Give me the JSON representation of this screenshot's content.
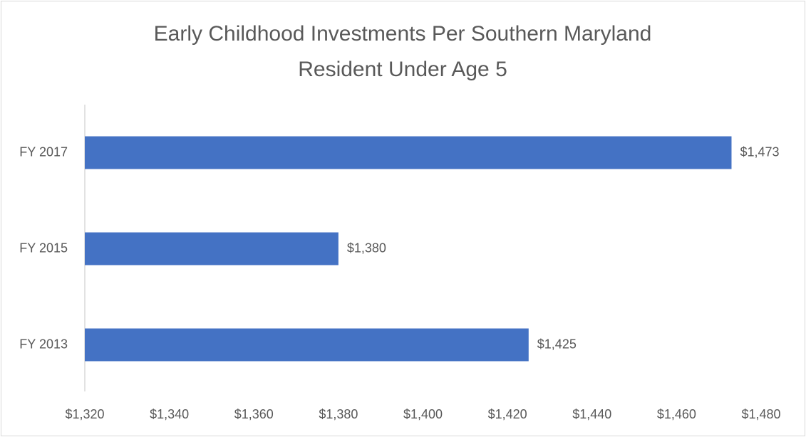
{
  "chart_data": {
    "type": "hbar",
    "title": [
      "Early Childhood Investments Per Southern Maryland",
      "Resident Under Age 5"
    ],
    "categories": [
      "FY 2017",
      "FY 2015",
      "FY 2013"
    ],
    "values": [
      1473,
      1380,
      1425
    ],
    "value_labels": [
      "$1,473",
      "$1,380",
      "$1,425"
    ],
    "color": "#4472c4",
    "xlim": [
      1320,
      1480
    ],
    "xticks": [
      {
        "value": 1320,
        "label": "$1,320"
      },
      {
        "value": 1340,
        "label": "$1,340"
      },
      {
        "value": 1360,
        "label": "$1,360"
      },
      {
        "value": 1380,
        "label": "$1,380"
      },
      {
        "value": 1400,
        "label": "$1,400"
      },
      {
        "value": 1420,
        "label": "$1,420"
      },
      {
        "value": 1440,
        "label": "$1,440"
      },
      {
        "value": 1460,
        "label": "$1,460"
      },
      {
        "value": 1480,
        "label": "$1,480"
      }
    ],
    "grid": false
  }
}
